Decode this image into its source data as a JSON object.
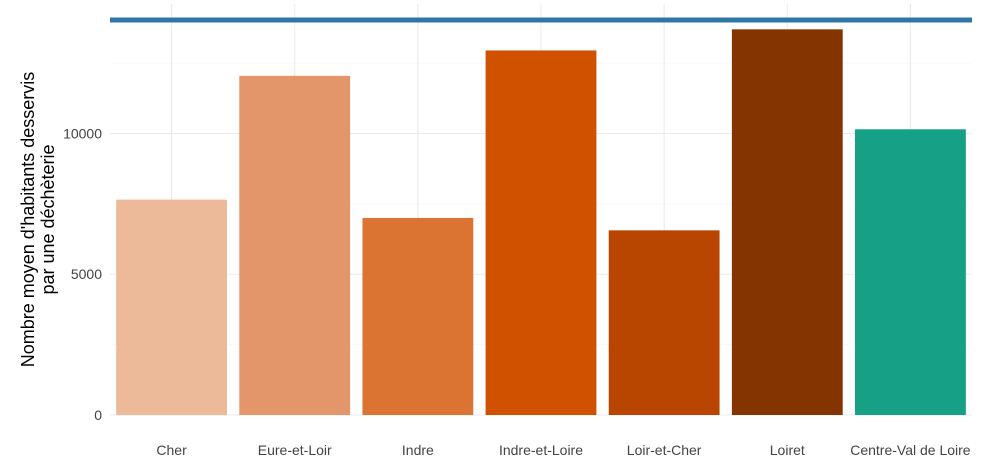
{
  "chart_data": {
    "type": "bar",
    "title": "",
    "xlabel": "",
    "ylabel": "Nombre moyen d'habitants desservis\npar une déchèterie",
    "categories": [
      "Cher",
      "Eure-et-Loir",
      "Indre",
      "Indre-et-Loire",
      "Loir-et-Cher",
      "Loiret",
      "Centre-Val de Loire"
    ],
    "values": [
      7650,
      12050,
      7000,
      12950,
      6560,
      13700,
      10150
    ],
    "colors": [
      "#ecb999",
      "#e3966a",
      "#db7433",
      "#d05200",
      "#b84601",
      "#843400",
      "#16a085"
    ],
    "reference_line": {
      "value": 14030,
      "color": "#2e75a8"
    },
    "ylim": [
      0,
      14600
    ],
    "yticks": [
      0,
      5000,
      10000
    ],
    "grid": true
  }
}
